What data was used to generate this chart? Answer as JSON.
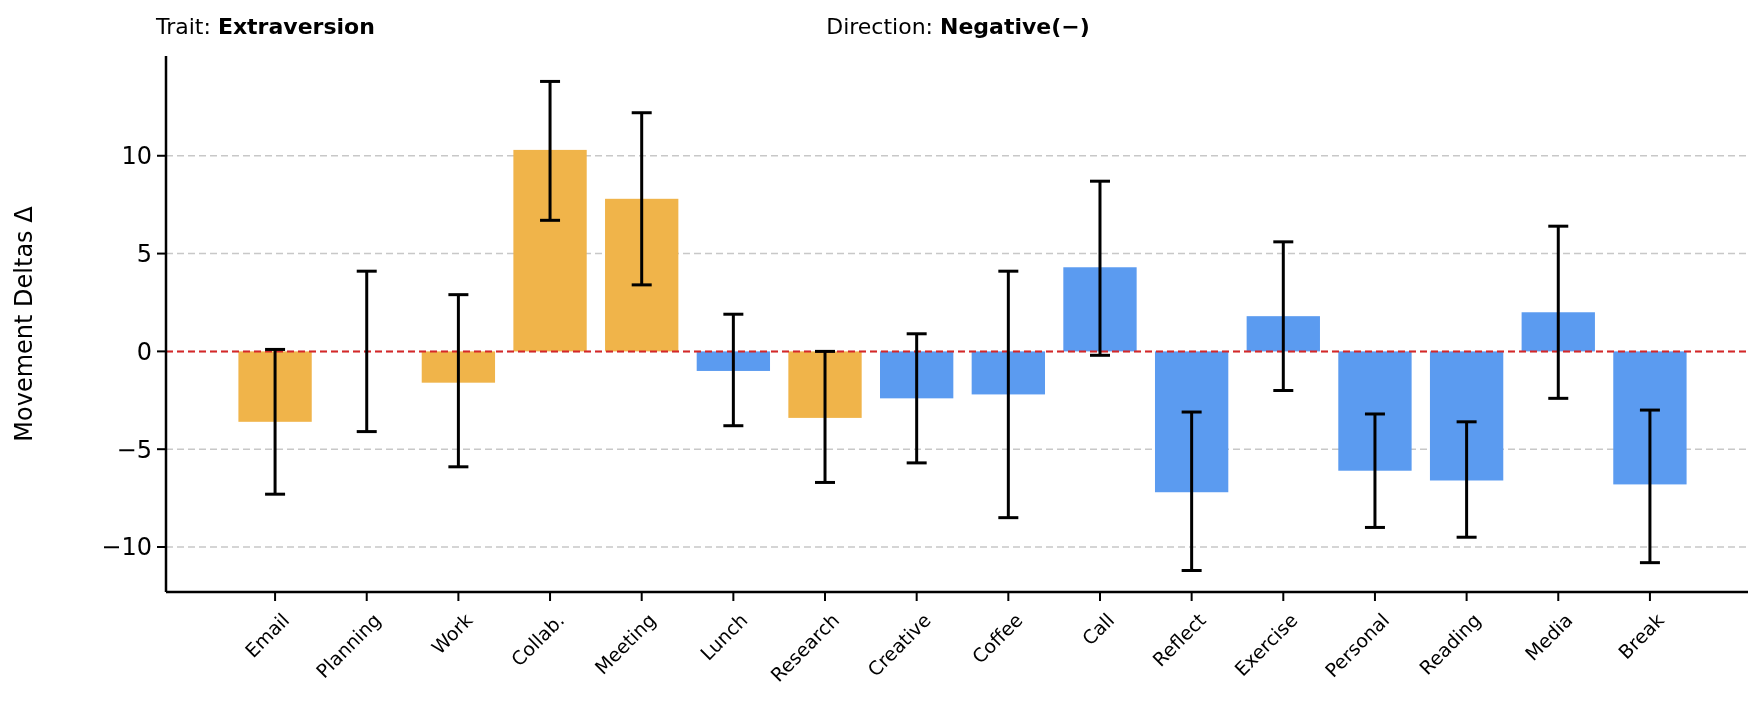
{
  "chart_data": {
    "type": "bar",
    "annotations": [
      "Trait: Extraversion",
      "Direction: Negative(−)"
    ],
    "ylabel": "Movement Deltas Δ",
    "categories": [
      "Email",
      "Planning",
      "Work",
      "Collab.",
      "Meeting",
      "Lunch",
      "Research",
      "Creative",
      "Coffee",
      "Call",
      "Reflect",
      "Exercise",
      "Personal",
      "Reading",
      "Media",
      "Break"
    ],
    "values": [
      -3.6,
      0,
      -1.6,
      10.3,
      7.8,
      -1.0,
      -3.4,
      -2.4,
      -2.2,
      4.3,
      -7.2,
      1.8,
      -6.1,
      -6.6,
      2.0,
      -6.8
    ],
    "errors": [
      [
        -7.3,
        0.1
      ],
      [
        -4.1,
        4.1
      ],
      [
        -5.9,
        2.9
      ],
      [
        6.7,
        13.8
      ],
      [
        3.4,
        12.2
      ],
      [
        -3.8,
        1.9
      ],
      [
        -6.7,
        0
      ],
      [
        -5.7,
        0.9
      ],
      [
        -8.5,
        4.1
      ],
      [
        -0.2,
        8.7
      ],
      [
        -11.2,
        -3.1
      ],
      [
        -2.0,
        5.6
      ],
      [
        -9.0,
        -3.2
      ],
      [
        -9.5,
        -3.6
      ],
      [
        -2.4,
        6.4
      ],
      [
        -10.8,
        -3.0
      ]
    ],
    "colors": [
      "#f0b44a",
      "#f0b44a",
      "#f0b44a",
      "#f0b44a",
      "#f0b44a",
      "#5b9bf0",
      "#f0b44a",
      "#5b9bf0",
      "#5b9bf0",
      "#5b9bf0",
      "#5b9bf0",
      "#5b9bf0",
      "#5b9bf0",
      "#5b9bf0",
      "#5b9bf0",
      "#5b9bf0"
    ],
    "ylim": [
      -12.3,
      15.1
    ],
    "yticks": [
      -10,
      -5,
      0,
      5,
      10
    ],
    "grid": "y",
    "ref_lines": [
      {
        "axis": "y",
        "value": 0,
        "color": "#d62728",
        "line_style": "dashed"
      }
    ]
  }
}
